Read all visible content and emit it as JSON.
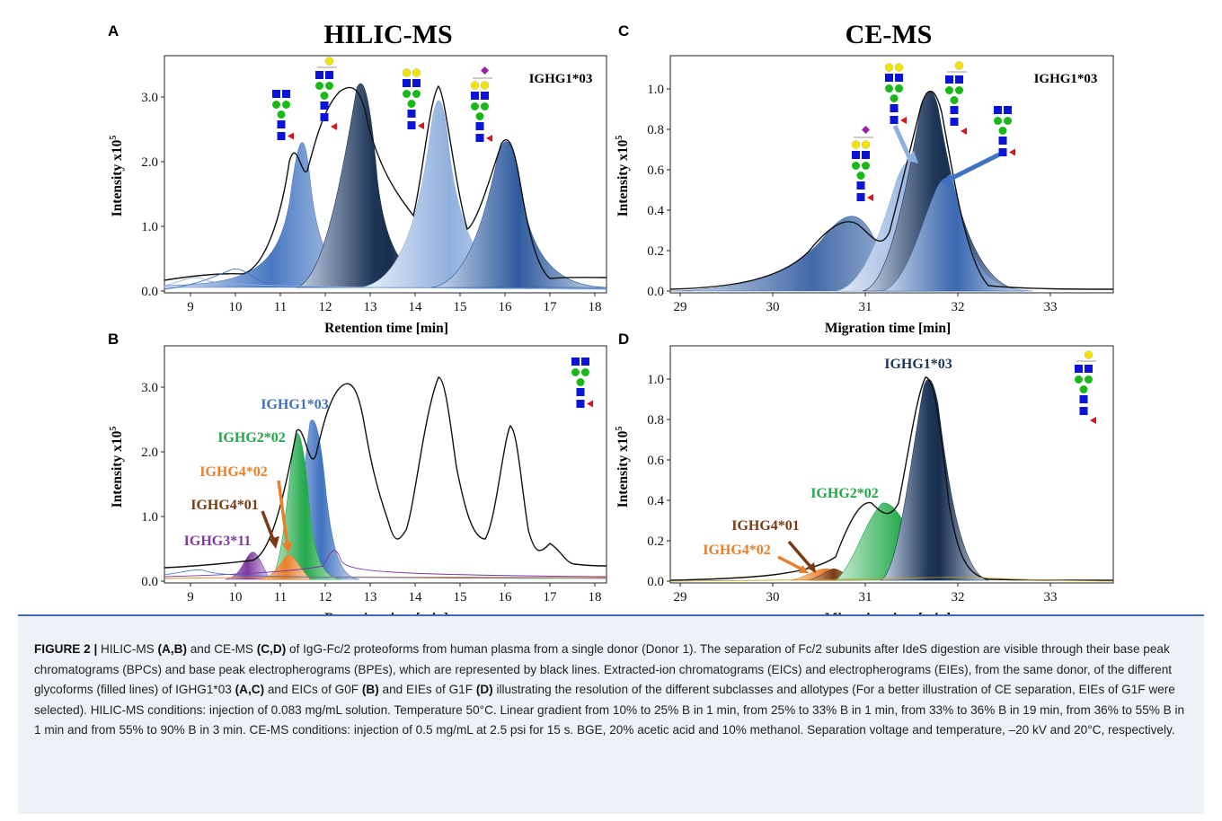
{
  "panels": [
    {
      "letter": "A",
      "heading": "HILIC-MS",
      "tag": "IGHG1*03",
      "ylabel_main": "Intensity x10",
      "ylabel_exp": "5",
      "xlabel": "Retention time [min]",
      "xticks": [
        "9",
        "10",
        "11",
        "12",
        "13",
        "14",
        "15",
        "16",
        "17",
        "18"
      ],
      "yticks": [
        "0.0",
        "1.0",
        "2.0",
        "3.0"
      ]
    },
    {
      "letter": "C",
      "heading": "CE-MS",
      "tag": "IGHG1*03",
      "ylabel_main": "Intensity x10",
      "ylabel_exp": "5",
      "xlabel": "Migration time [min]",
      "xticks": [
        "29",
        "30",
        "31",
        "32",
        "33"
      ],
      "yticks": [
        "0.0",
        "0.2",
        "0.4",
        "0.6",
        "0.8",
        "1.0"
      ]
    },
    {
      "letter": "B",
      "ylabel_main": "Intensity x10",
      "ylabel_exp": "5",
      "xlabel": "Retention time [min]",
      "xticks": [
        "9",
        "10",
        "11",
        "12",
        "13",
        "14",
        "15",
        "16",
        "17",
        "18"
      ],
      "yticks": [
        "0.0",
        "1.0",
        "2.0",
        "3.0"
      ],
      "labels": [
        "IGHG1*03",
        "IGHG2*02",
        "IGHG4*02",
        "IGHG4*01",
        "IGHG3*11"
      ]
    },
    {
      "letter": "D",
      "ylabel_main": "Intensity x10",
      "ylabel_exp": "5",
      "xlabel": "Migration time [min]",
      "xticks": [
        "29",
        "30",
        "31",
        "32",
        "33"
      ],
      "yticks": [
        "0.0",
        "0.2",
        "0.4",
        "0.6",
        "0.8",
        "1.0"
      ],
      "labels": [
        "IGHG1*03",
        "IGHG2*02",
        "IGHG4*01",
        "IGHG4*02"
      ]
    }
  ],
  "colors": {
    "dark_navy": "#1d3557",
    "blue": "#3f72c0",
    "light_blue": "#8fb0de",
    "green": "#22a84a",
    "orange": "#e97f2a",
    "brown": "#7a3a12",
    "purple": "#7c3a9e",
    "glycan_blue": "#0a14d8",
    "glycan_green": "#18b818",
    "glycan_yellow": "#f2e600",
    "glycan_red": "#d8141e",
    "glycan_purple": "#9b1fa6",
    "caption_rule": "#3a6db5",
    "caption_bg": "#eef2f8"
  },
  "caption": {
    "figure_label": "FIGURE 2 |",
    "t1": " HILIC-MS ",
    "b1": "(A,B)",
    "t2": " and CE-MS ",
    "b2": "(C,D)",
    "t3": " of IgG-Fc/2 proteoforms from human plasma from a single donor (Donor 1). The separation of Fc/2 subunits after IdeS digestion are visible through their base peak chromatograms (BPCs) and base peak electropherograms (BPEs), which are represented by black lines. Extracted-ion chromatograms (EICs) and electropherograms (EIEs), from the same donor, of the different glycoforms (filled lines) of IGHG1*03 ",
    "b3": "(A,C)",
    "t4": " and EICs of G0F ",
    "b4": "(B)",
    "t5": " and EIEs of G1F ",
    "b5": "(D)",
    "t6": " illustrating the resolution of the different subclasses and allotypes (For a better illustration of CE separation, EIEs of G1F were selected). HILIC-MS conditions: injection of 0.083 mg/mL solution. Temperature 50°C. Linear gradient from 10% to 25% B in 1 min, from 25% to 33% B in 1 min, from 33% to 36% B in 19 min, from 36% to 55% B in 1 min and from 55% to 90% B in 3 min. CE-MS conditions: injection of 0.5 mg/mL at 2.5 psi for 15 s. BGE, 20% acetic acid and 10% methanol. Separation voltage and temperature, –20 kV and 20°C, respectively."
  }
}
